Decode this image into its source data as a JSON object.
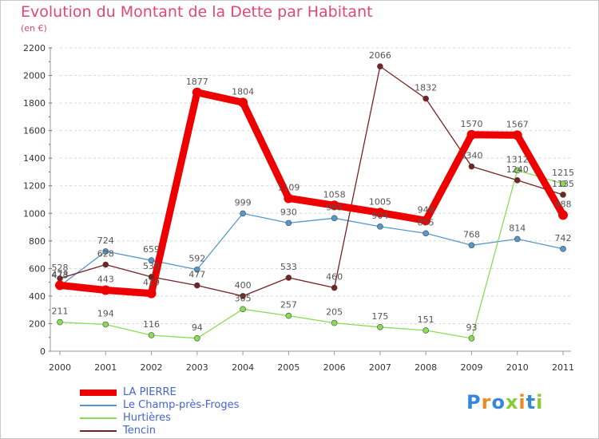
{
  "title": "Evolution du Montant de la Dette par Habitant",
  "unit": "(en €)",
  "logo": "Proxiti",
  "chart_data": {
    "type": "line",
    "title": "Evolution du Montant de la Dette par Habitant",
    "ylabel": "(en €)",
    "xlabel": "",
    "x": [
      "2000",
      "2001",
      "2002",
      "2003",
      "2004",
      "2005",
      "2006",
      "2007",
      "2008",
      "2009",
      "2010",
      "2011"
    ],
    "ylim": [
      0,
      2200
    ],
    "yticks": [
      0,
      200,
      400,
      600,
      800,
      1000,
      1200,
      1400,
      1600,
      1800,
      2000,
      2200
    ],
    "grid": "horizontal",
    "legend": "bottom-left",
    "series": [
      {
        "name": "LA PIERRE",
        "color": "#ee0000",
        "values": [
          478,
          443,
          419,
          1877,
          1804,
          1109,
          1058,
          1005,
          948,
          1570,
          1567,
          988
        ]
      },
      {
        "name": "Le Champ-près-Froges",
        "color": "#5599cc",
        "values": [
          473,
          724,
          659,
          592,
          999,
          930,
          965,
          904,
          855,
          768,
          814,
          742
        ]
      },
      {
        "name": "Hurtières",
        "color": "#88dd55",
        "values": [
          211,
          194,
          116,
          94,
          305,
          257,
          205,
          175,
          151,
          93,
          1312,
          1215
        ]
      },
      {
        "name": "Tencin",
        "color": "#772222",
        "values": [
          528,
          628,
          539,
          477,
          400,
          533,
          460,
          2066,
          1832,
          1340,
          1240,
          1135
        ]
      }
    ]
  }
}
